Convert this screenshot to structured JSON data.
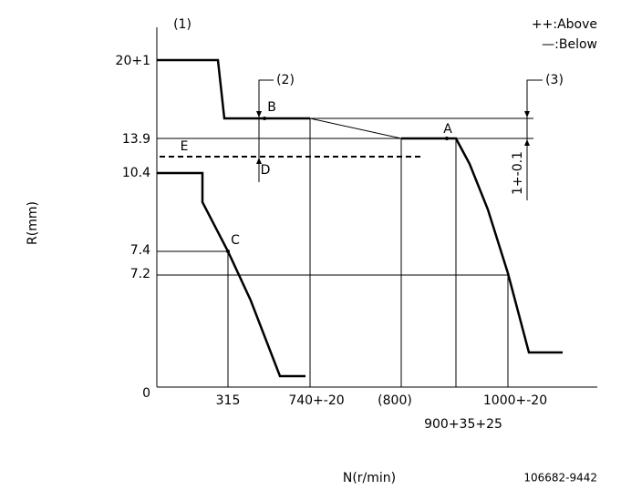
{
  "labels": {
    "marker_1": "(1)",
    "marker_2": "(2)",
    "marker_3": "(3)",
    "legend_above": "++:Above",
    "legend_below": "—:Below",
    "tolerance": "1+-0.1",
    "point_a": "A",
    "point_b": "B",
    "point_c": "C",
    "point_d": "D",
    "point_e": "E",
    "code": "106682-9442"
  },
  "y_axis": {
    "title": "R(mm)",
    "ticks": [
      "20+1",
      "13.9",
      "10.4",
      "7.4",
      "7.2",
      "0"
    ]
  },
  "x_axis": {
    "title": "N(r/min)",
    "ticks": [
      "315",
      "740+-20",
      "(800)",
      "1000+-20",
      "900+35+25"
    ]
  }
}
